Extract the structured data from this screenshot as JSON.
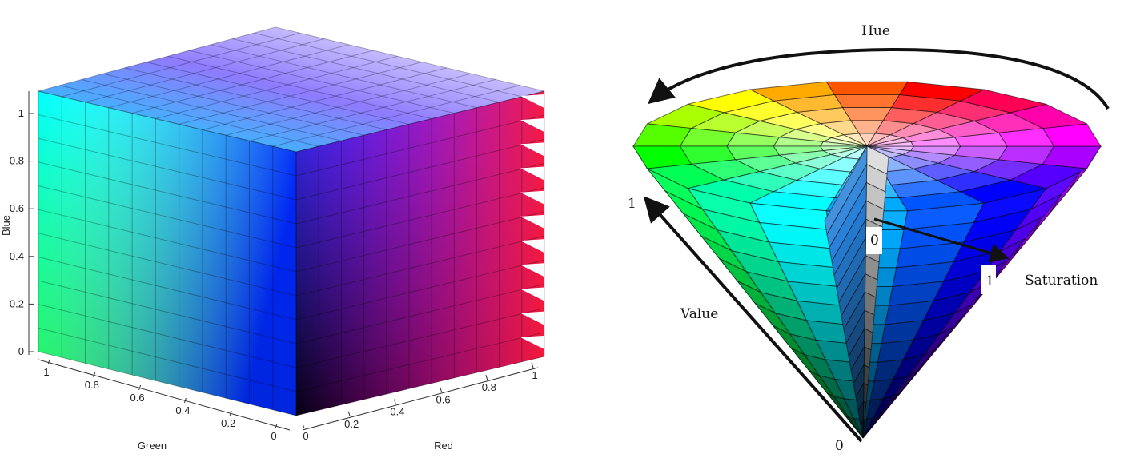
{
  "rgb_cube": {
    "axes": {
      "blue": {
        "label": "Blue",
        "ticks": [
          "0",
          "0.2",
          "0.4",
          "0.6",
          "0.8",
          "1"
        ]
      },
      "green": {
        "label": "Green",
        "ticks": [
          "1",
          "0.8",
          "0.6",
          "0.4",
          "0.2",
          "0"
        ]
      },
      "red": {
        "label": "Red",
        "ticks": [
          "0",
          "0.2",
          "0.4",
          "0.6",
          "0.8",
          "1"
        ]
      }
    },
    "face_colors": {
      "top_white": "#ffffff",
      "cyan": "#00ffff",
      "green": "#00ff00",
      "blue": "#0000ff",
      "black": "#000000",
      "magenta": "#ff00ff",
      "red": "#ff0000"
    },
    "grid_divisions": 11
  },
  "hsv_cone": {
    "labels": {
      "hue": "Hue",
      "saturation": "Saturation",
      "value": "Value",
      "value_top": "1",
      "value_bottom": "0",
      "saturation_start": "0",
      "saturation_end": "1"
    },
    "hue_sectors": 18,
    "rings": 5
  }
}
